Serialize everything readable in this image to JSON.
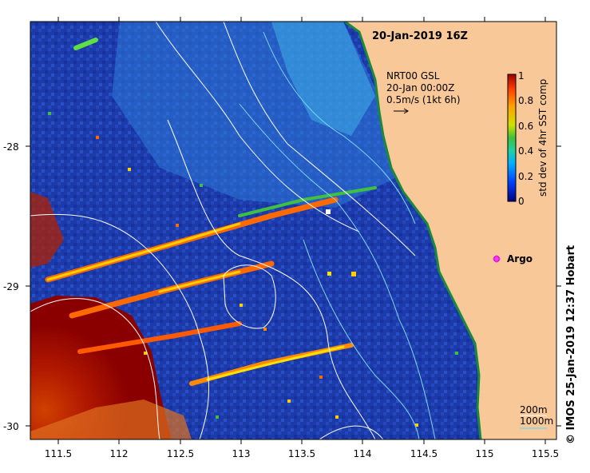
{
  "title": "20-Jan-2019 16Z",
  "current_info": {
    "product": "NRT00 GSL",
    "time": "20-Jan 00:00Z",
    "scale": "0.5m/s (1kt 6h)"
  },
  "colorbar": {
    "label": "std dev of 4hr SST comp",
    "min": 0,
    "max": 1,
    "ticks": [
      "0",
      "0.2",
      "0.4",
      "0.6",
      "0.8",
      "1"
    ],
    "colors": [
      "#00007f",
      "#0040ff",
      "#00b0ff",
      "#20d0a0",
      "#40c040",
      "#d0e000",
      "#ffa000",
      "#ff4000",
      "#a00000"
    ]
  },
  "legend": {
    "argo_label": "Argo",
    "argo_color": "#ff33ff",
    "contour_200": "200m",
    "contour_1000": "1000m"
  },
  "axes": {
    "x_range": [
      111.3,
      115.6
    ],
    "y_range": [
      -30.1,
      -27.1
    ],
    "x_ticks": [
      "111.5",
      "112",
      "112.5",
      "113",
      "113.5",
      "114",
      "114.5",
      "115",
      "115.5"
    ],
    "y_ticks": [
      "-28",
      "-29",
      "-30"
    ]
  },
  "credit": "© IMOS 25-Jan-2019 12:37 Hobart",
  "colors": {
    "ocean": "#1c3aa8",
    "land": "#f8c898",
    "coast": "#1a8a3a"
  }
}
